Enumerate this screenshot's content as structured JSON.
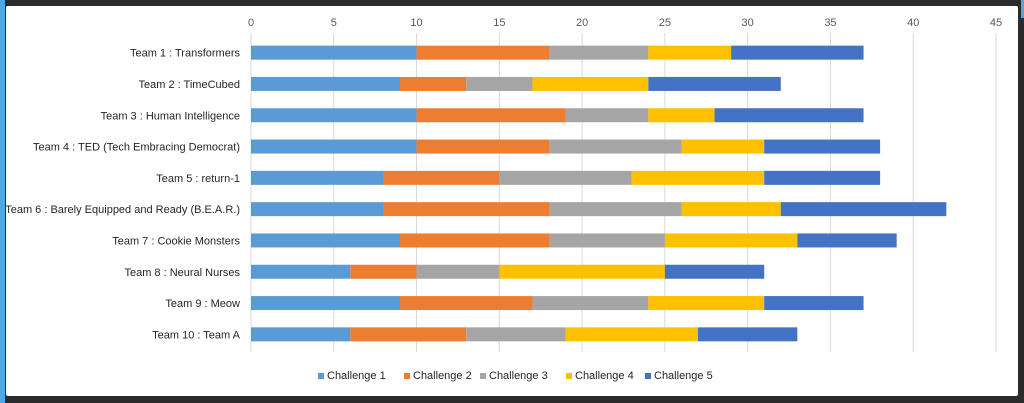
{
  "chart_data": {
    "type": "bar",
    "orientation": "horizontal",
    "stacked": true,
    "categories": [
      "Team 1 : Transformers",
      "Team 2 : TimeCubed",
      "Team 3 : Human Intelligence",
      "Team 4 : TED (Tech Embracing Democrat)",
      "Team 5 : return-1",
      "Team 6 : Barely Equipped and Ready (B.E.A.R.)",
      "Team 7 : Cookie Monsters",
      "Team 8 : Neural Nurses",
      "Team 9 : Meow",
      "Team 10 : Team A"
    ],
    "series": [
      {
        "name": "Challenge 1",
        "color": "#5b9bd5",
        "values": [
          10,
          9,
          10,
          10,
          8,
          8,
          9,
          6,
          9,
          6
        ]
      },
      {
        "name": "Challenge 2",
        "color": "#ed7d31",
        "values": [
          8,
          4,
          9,
          8,
          7,
          10,
          9,
          4,
          8,
          7
        ]
      },
      {
        "name": "Challenge 3",
        "color": "#a5a5a5",
        "values": [
          6,
          4,
          5,
          8,
          8,
          8,
          7,
          5,
          7,
          6
        ]
      },
      {
        "name": "Challenge 4",
        "color": "#ffc000",
        "values": [
          5,
          7,
          4,
          5,
          8,
          6,
          8,
          10,
          7,
          8
        ]
      },
      {
        "name": "Challenge 5",
        "color": "#4472c4",
        "values": [
          8,
          8,
          9,
          7,
          7,
          10,
          6,
          6,
          6,
          6
        ]
      }
    ],
    "xlim": [
      0,
      45
    ],
    "xticks": [
      "0",
      "5",
      "10",
      "15",
      "20",
      "25",
      "30",
      "35",
      "40",
      "45"
    ],
    "title": "",
    "xlabel": "",
    "ylabel": "",
    "grid": true,
    "legend": "bottom"
  }
}
